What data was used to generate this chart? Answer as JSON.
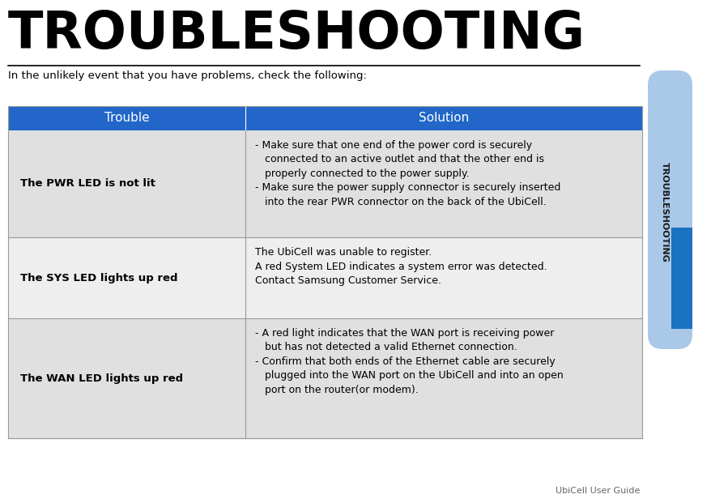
{
  "title": "TROUBLESHOOTING",
  "subtitle": "In the unlikely event that you have problems, check the following:",
  "header_bg": "#2166c8",
  "header_text_color": "#ffffff",
  "col1_header": "Trouble",
  "col2_header": "Solution",
  "row_bg_odd": "#e0e0e0",
  "row_bg_even": "#eeeeee",
  "border_color": "#999999",
  "rows": [
    {
      "trouble": "The PWR LED is not lit",
      "solution": "- Make sure that one end of the power cord is securely\n   connected to an active outlet and that the other end is\n   properly connected to the power supply.\n- Make sure the power supply connector is securely inserted\n   into the rear PWR connector on the back of the UbiCell."
    },
    {
      "trouble": "The SYS LED lights up red",
      "solution": "The UbiCell was unable to register.\nA red System LED indicates a system error was detected.\nContact Samsung Customer Service."
    },
    {
      "trouble": "The WAN LED lights up red",
      "solution": "- A red light indicates that the WAN port is receiving power\n   but has not detected a valid Ethernet connection.\n- Confirm that both ends of the Ethernet cable are securely\n   plugged into the WAN port on the UbiCell and into an open\n   port on the router(or modem)."
    }
  ],
  "tab_bg_light": "#aac8e8",
  "tab_bg_dark": "#1a72c0",
  "tab_text": "TROUBLESHOOTING",
  "footer_text": "UbiCell User Guide",
  "fig_width": 8.99,
  "fig_height": 6.21,
  "dpi": 100
}
